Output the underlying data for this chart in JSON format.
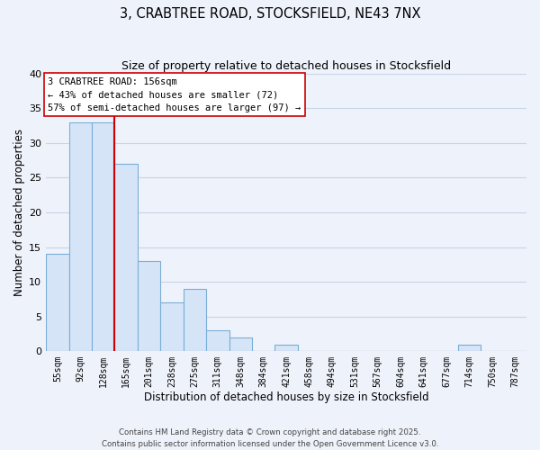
{
  "title": "3, CRABTREE ROAD, STOCKSFIELD, NE43 7NX",
  "subtitle": "Size of property relative to detached houses in Stocksfield",
  "xlabel": "Distribution of detached houses by size in Stocksfield",
  "ylabel": "Number of detached properties",
  "bin_labels": [
    "55sqm",
    "92sqm",
    "128sqm",
    "165sqm",
    "201sqm",
    "238sqm",
    "275sqm",
    "311sqm",
    "348sqm",
    "384sqm",
    "421sqm",
    "458sqm",
    "494sqm",
    "531sqm",
    "567sqm",
    "604sqm",
    "641sqm",
    "677sqm",
    "714sqm",
    "750sqm",
    "787sqm"
  ],
  "bar_values": [
    14,
    33,
    33,
    27,
    13,
    7,
    9,
    3,
    2,
    0,
    1,
    0,
    0,
    0,
    0,
    0,
    0,
    0,
    1,
    0,
    0
  ],
  "bar_color": "#d6e4f7",
  "bar_edge_color": "#7aaed6",
  "marker_color": "#cc0000",
  "annotation_title": "3 CRABTREE ROAD: 156sqm",
  "annotation_line1": "← 43% of detached houses are smaller (72)",
  "annotation_line2": "57% of semi-detached houses are larger (97) →",
  "ylim": [
    0,
    40
  ],
  "yticks": [
    0,
    5,
    10,
    15,
    20,
    25,
    30,
    35,
    40
  ],
  "footer_line1": "Contains HM Land Registry data © Crown copyright and database right 2025.",
  "footer_line2": "Contains public sector information licensed under the Open Government Licence v3.0.",
  "bg_color": "#eef2fa",
  "grid_color": "#c8d4e8"
}
